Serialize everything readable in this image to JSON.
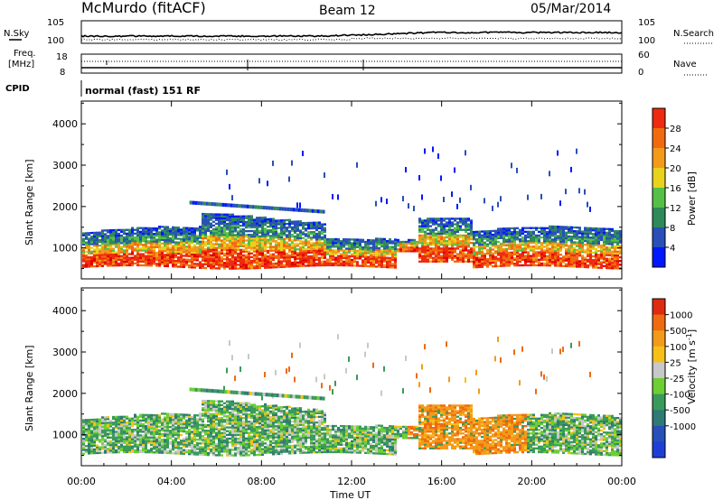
{
  "header": {
    "site": "McMurdo (fitACF)",
    "beam": "Beam 12",
    "date": "05/Mar/2014"
  },
  "top_panels": {
    "nsky_label": "N.Sky",
    "nsearch_label": "N.Search",
    "noise_ticks": [
      "10^5",
      "10^0"
    ],
    "freq_label_1": "Freq.",
    "freq_label_2": "[MHz]",
    "freq_ticks": [
      "18",
      "8"
    ],
    "nave_label": "Nave",
    "nave_ticks": [
      "60",
      "0"
    ],
    "cpid_label": "CPID",
    "cpid_text": "normal (fast) 151 RF"
  },
  "colors": {
    "power_scale": [
      "#0018ff",
      "#2850b8",
      "#2f8a5a",
      "#55c047",
      "#e8d21c",
      "#f39a1a",
      "#f26a10",
      "#ee2a10",
      "#e20000"
    ],
    "velocity_scale": [
      "#1e3fd6",
      "#2850b8",
      "#2f7a74",
      "#3a9a5a",
      "#6dce35",
      "#c8c8c8",
      "#f6c018",
      "#f39a1a",
      "#ef6a10",
      "#e02a10"
    ]
  },
  "chart_data": [
    {
      "type": "heatmap",
      "name": "power",
      "ylabel": "Slant Range [km]",
      "yticks": [
        1000,
        2000,
        3000,
        4000
      ],
      "ylim": [
        250,
        4550
      ],
      "colorbar_label": "Power [dB]",
      "colorbar_ticks": [
        4,
        8,
        12,
        16,
        20,
        24,
        28
      ],
      "colorbar_range": [
        0,
        32
      ]
    },
    {
      "type": "heatmap",
      "name": "velocity",
      "ylabel": "Slant Range [km]",
      "yticks": [
        1000,
        2000,
        3000,
        4000
      ],
      "ylim": [
        250,
        4550
      ],
      "colorbar_label": "Velocity [m s^-1]",
      "colorbar_ticks": [
        "1000",
        "500",
        "100",
        "25",
        "-25",
        "-100",
        "-500",
        "-1000"
      ],
      "xlabel": "Time UT",
      "xticks": [
        "00:00",
        "04:00",
        "08:00",
        "12:00",
        "16:00",
        "20:00",
        "00:00"
      ],
      "xlim": [
        0,
        24
      ]
    }
  ]
}
